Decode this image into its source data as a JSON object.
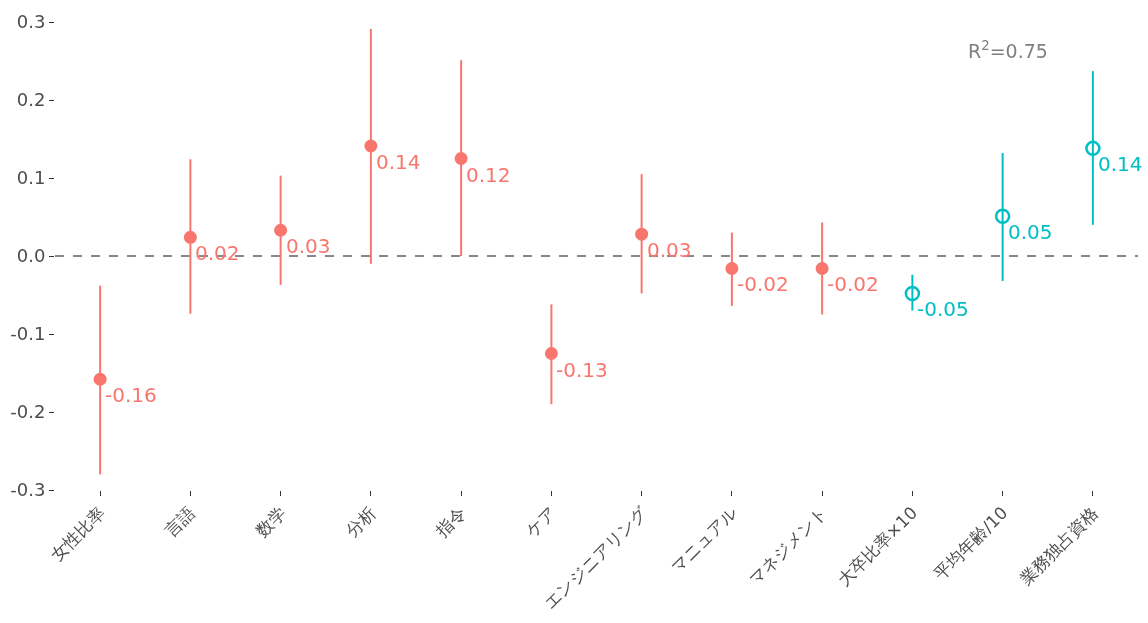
{
  "chart_data": {
    "type": "scatter",
    "categories": [
      "女性比率",
      "言語",
      "数学",
      "分析",
      "指令",
      "ケア",
      "エンジニアリング",
      "マニュアル",
      "マネジメント",
      "大卒比率×10",
      "平均年齢/10",
      "業務独占資格"
    ],
    "series": [
      {
        "color": "#f8766d",
        "marker": "circle",
        "values": [
          -0.158,
          0.024,
          0.033,
          0.141,
          0.125,
          -0.125,
          0.028,
          -0.016,
          -0.016,
          null,
          null,
          null
        ],
        "errors": [
          [
            -0.28,
            -0.038
          ],
          [
            -0.074,
            0.124
          ],
          [
            -0.037,
            0.103
          ],
          [
            -0.01,
            0.291
          ],
          [
            0.0,
            0.251
          ],
          [
            -0.19,
            -0.062
          ],
          [
            -0.048,
            0.105
          ],
          [
            -0.064,
            0.03
          ],
          [
            -0.075,
            0.043
          ],
          null,
          null,
          null
        ],
        "value_labels": [
          "-0.16",
          "0.02",
          "0.03",
          "0.14",
          "0.12",
          "-0.13",
          "0.03",
          "-0.02",
          "-0.02",
          null,
          null,
          null
        ]
      },
      {
        "color": "#00bfc4",
        "marker": "circle-open",
        "values": [
          null,
          null,
          null,
          null,
          null,
          null,
          null,
          null,
          null,
          -0.048,
          0.051,
          0.138
        ],
        "errors": [
          null,
          null,
          null,
          null,
          null,
          null,
          null,
          null,
          null,
          [
            -0.07,
            -0.024
          ],
          [
            -0.032,
            0.132
          ],
          [
            0.04,
            0.237
          ]
        ],
        "value_labels": [
          null,
          null,
          null,
          null,
          null,
          null,
          null,
          null,
          null,
          "-0.05",
          "0.05",
          "0.14"
        ]
      }
    ],
    "ylim": [
      -0.3,
      0.3
    ],
    "yticks": [
      {
        "value": -0.3,
        "label": "-0.3"
      },
      {
        "value": -0.2,
        "label": "-0.2"
      },
      {
        "value": -0.1,
        "label": "-0.1"
      },
      {
        "value": 0,
        "label": "0.0"
      },
      {
        "value": 0.1,
        "label": "0.1"
      },
      {
        "value": 0.2,
        "label": "0.2"
      },
      {
        "value": 0.3,
        "label": "0.3"
      }
    ],
    "ref_lines": [
      {
        "axis": "y",
        "value": 0,
        "color": "#888888",
        "line_style": "dashed"
      }
    ],
    "annotations": [
      "R$^{2}$=0.75"
    ],
    "grid": false
  }
}
